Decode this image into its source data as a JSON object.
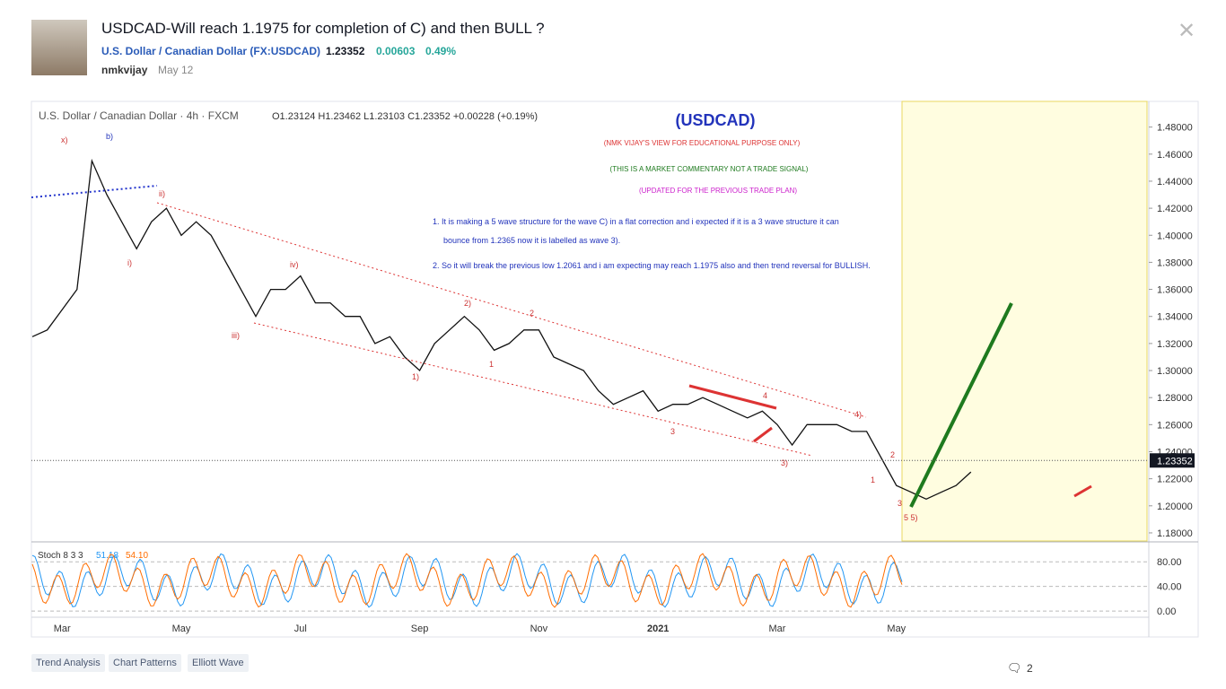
{
  "header": {
    "title": "USDCAD-Will reach 1.1975 for completion of C) and then BULL ?",
    "symbol": "U.S. Dollar / Canadian Dollar (FX:USDCAD)",
    "price": "1.23352",
    "change": "0.00603",
    "change_pct": "0.49%",
    "author": "nmkvijay",
    "date": "May 12"
  },
  "chart_data": {
    "type": "line",
    "title": "U.S. Dollar / Canadian Dollar · 4h · FXCM",
    "legend": "O1.23124  H1.23462  L1.23103  C1.23352  +0.00228 (+0.19%)",
    "color": "#111111",
    "categories": [
      null,
      null,
      "Mar",
      null,
      null,
      null,
      null,
      null,
      null,
      null,
      "May",
      null,
      null,
      null,
      null,
      null,
      null,
      null,
      "Jul",
      null,
      null,
      null,
      null,
      null,
      null,
      null,
      "Sep",
      null,
      null,
      null,
      null,
      null,
      null,
      null,
      "Nov",
      null,
      null,
      null,
      null,
      null,
      null,
      null,
      "2021",
      null,
      null,
      null,
      null,
      null,
      null,
      null,
      "Mar",
      null,
      null,
      null,
      null,
      null,
      null,
      null,
      "May",
      null,
      null,
      null,
      null,
      null,
      null,
      null,
      null,
      null,
      null,
      null,
      null,
      null,
      null,
      null,
      null
    ],
    "values": [
      1.325,
      1.33,
      1.345,
      1.36,
      1.455,
      1.43,
      1.41,
      1.39,
      1.41,
      1.42,
      1.4,
      1.41,
      1.4,
      1.38,
      1.36,
      1.34,
      1.36,
      1.36,
      1.37,
      1.35,
      1.35,
      1.34,
      1.34,
      1.32,
      1.325,
      1.31,
      1.3,
      1.32,
      1.33,
      1.34,
      1.33,
      1.315,
      1.32,
      1.33,
      1.33,
      1.31,
      1.305,
      1.3,
      1.285,
      1.275,
      1.28,
      1.285,
      1.27,
      1.275,
      1.275,
      1.28,
      1.275,
      1.27,
      1.265,
      1.27,
      1.26,
      1.245,
      1.26,
      1.26,
      1.26,
      1.255,
      1.255,
      1.235,
      1.215,
      1.21,
      1.205,
      1.21,
      1.215,
      1.225,
      null,
      null,
      null,
      null,
      null,
      null,
      null,
      null,
      null,
      null,
      null
    ],
    "ylim": [
      1.174,
      1.499
    ],
    "yticks": [
      {
        "value": 1.18,
        "label": "1.18000"
      },
      {
        "value": 1.2,
        "label": "1.20000"
      },
      {
        "value": 1.22,
        "label": "1.22000"
      },
      {
        "value": 1.24,
        "label": "1.24000"
      },
      {
        "value": 1.26,
        "label": "1.26000"
      },
      {
        "value": 1.28,
        "label": "1.28000"
      },
      {
        "value": 1.3,
        "label": "1.30000"
      },
      {
        "value": 1.32,
        "label": "1.32000"
      },
      {
        "value": 1.34,
        "label": "1.34000"
      },
      {
        "value": 1.36,
        "label": "1.36000"
      },
      {
        "value": 1.38,
        "label": "1.38000"
      },
      {
        "value": 1.4,
        "label": "1.40000"
      },
      {
        "value": 1.42,
        "label": "1.42000"
      },
      {
        "value": 1.44,
        "label": "1.44000"
      },
      {
        "value": 1.46,
        "label": "1.46000"
      },
      {
        "value": 1.48,
        "label": "1.48000"
      }
    ],
    "last_price": {
      "value": 1.23352,
      "label": "1.23352"
    },
    "annotations": [
      "(USDCAD)",
      "(NMK VIJAY'S VIEW FOR EDUCATIONAL PURPOSE ONLY)",
      "(THIS IS A MARKET COMMENTARY NOT A TRADE SIGNAL)",
      "(UPDATED FOR THE PREVIOUS TRADE PLAN)",
      "1. It is making a 5 wave structure for the wave C) in a flat correction and i expected if it is a 3 wave structure it can",
      "bounce from 1.2365 now it is labelled as wave 3).",
      "2. So it will break the previous low 1.2061 and i am expecting may reach 1.1975 also and then trend reversal for BULLISH."
    ],
    "wave_labels": [
      "x)",
      "b)",
      "ii)",
      "i)",
      "iii)",
      "iv)",
      "1)",
      "2)",
      "2",
      "1",
      "3",
      "4",
      "3)",
      "4)",
      "1",
      "2",
      "3",
      "5 5)"
    ]
  },
  "indicator": {
    "label": "Stoch 8 3 3",
    "k": "51.18",
    "d": "54.10",
    "ylim": [
      -10,
      108
    ],
    "yticks": [
      {
        "value": 0,
        "label": "0.00"
      },
      {
        "value": 40,
        "label": "40.00"
      },
      {
        "value": 80,
        "label": "80.00"
      }
    ]
  },
  "tags": [
    "Trend Analysis",
    "Chart Patterns",
    "Elliott Wave"
  ],
  "comments": 2
}
